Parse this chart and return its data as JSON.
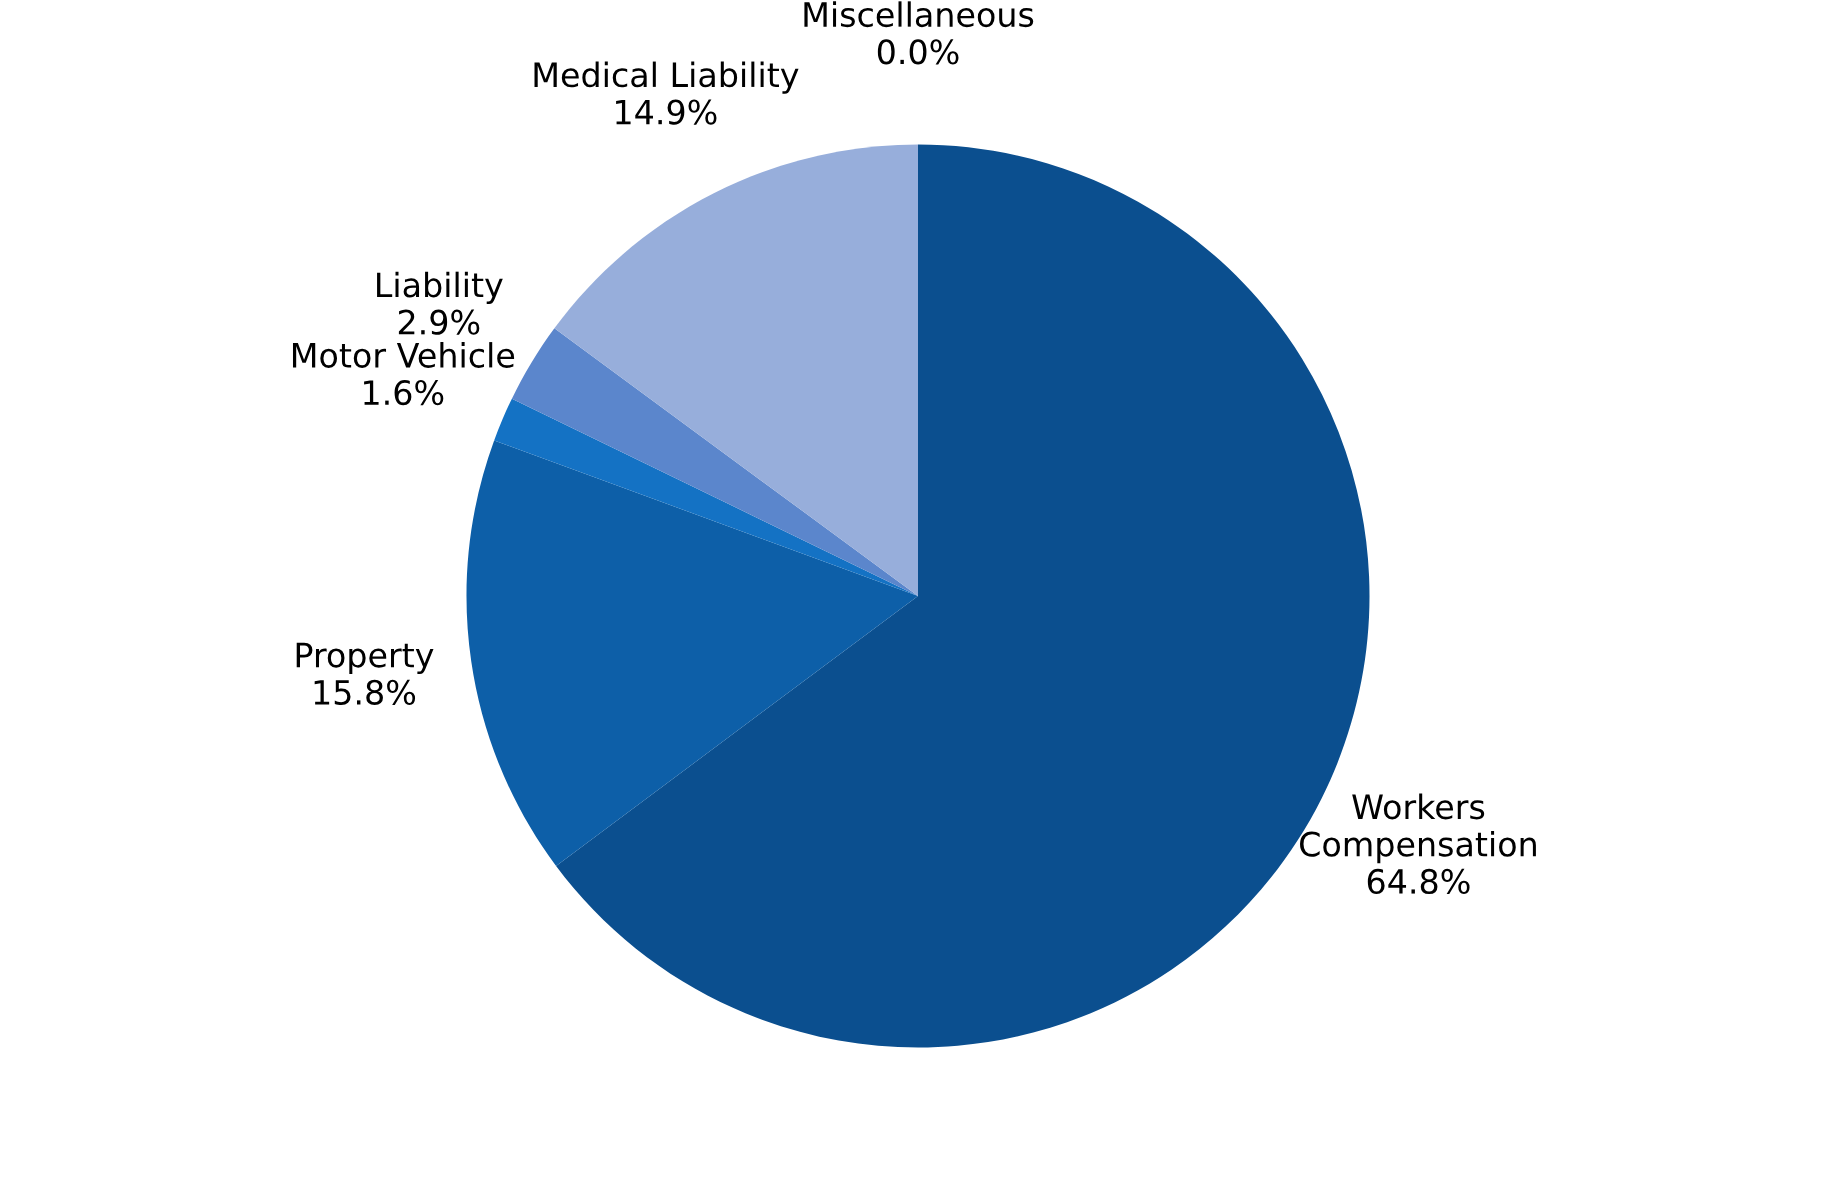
{
  "chart_data": {
    "type": "pie",
    "categories": [
      "Workers\nCompensation",
      "Property",
      "Motor Vehicle",
      "Liability",
      "Medical Liability",
      "Miscellaneous"
    ],
    "values": [
      64.8,
      15.8,
      1.6,
      2.9,
      14.9,
      0.0
    ],
    "value_labels": [
      "64.8%",
      "15.8%",
      "1.6%",
      "2.9%",
      "14.9%",
      "0.0%"
    ],
    "colors": [
      "#0b4f8f",
      "#0d5fa8",
      "#1472c4",
      "#5b86cc",
      "#97aedb",
      "#b7c7e6"
    ],
    "legend": false
  }
}
